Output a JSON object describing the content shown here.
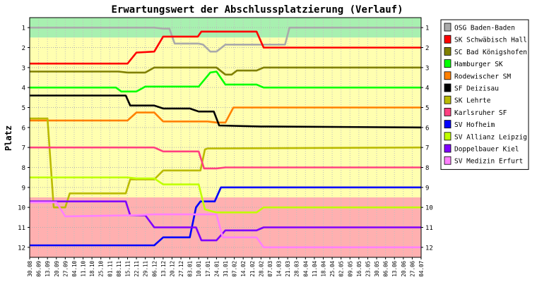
{
  "chart_data": {
    "type": "line",
    "title": "Erwartungswert der Abschlussplatzierung (Verlauf)",
    "ylabel": "Platz",
    "xlabel": "",
    "ylim": [
      0.5,
      12.5
    ],
    "y_inverted": true,
    "y_ticks": [
      "1",
      "2",
      "3",
      "4",
      "5",
      "6",
      "7",
      "8",
      "9",
      "10",
      "11",
      "12"
    ],
    "x_ticks": [
      "30.08",
      "06.09",
      "13.09",
      "20.09",
      "27.09",
      "04.10",
      "11.10",
      "18.10",
      "25.10",
      "01.11",
      "08.11",
      "15.11",
      "22.11",
      "29.11",
      "06.12",
      "13.12",
      "20.12",
      "27.12",
      "03.01",
      "10.01",
      "17.01",
      "24.01",
      "31.01",
      "07.02",
      "14.02",
      "21.02",
      "28.02",
      "07.03",
      "14.03",
      "21.03",
      "28.03",
      "04.04",
      "11.04",
      "18.04",
      "25.04",
      "02.05",
      "09.05",
      "16.05",
      "23.05",
      "30.05",
      "06.06",
      "13.06",
      "20.06",
      "27.06",
      "04.07"
    ],
    "bands": [
      {
        "from": 0.5,
        "to": 1.5,
        "color": "#a8f0b0"
      },
      {
        "from": 1.5,
        "to": 9.5,
        "color": "#ffffb0"
      },
      {
        "from": 9.5,
        "to": 12.5,
        "color": "#ffb0b0"
      }
    ],
    "grid": true,
    "legend_position": "right",
    "series": [
      {
        "name": "OSG Baden-Baden",
        "color": "#aaaaaa",
        "points": [
          [
            0,
            1
          ],
          [
            14,
            1
          ],
          [
            15,
            1.05
          ],
          [
            15.7,
            1.05
          ],
          [
            16.3,
            1.8
          ],
          [
            19,
            1.8
          ],
          [
            19.5,
            1.85
          ],
          [
            20.3,
            2.2
          ],
          [
            21,
            2.2
          ],
          [
            22,
            1.85
          ],
          [
            23,
            1.85
          ],
          [
            28.7,
            1.85
          ],
          [
            29.2,
            1
          ],
          [
            44,
            1
          ]
        ]
      },
      {
        "name": "SK Schwäbisch Hall",
        "color": "#ff0000",
        "points": [
          [
            0,
            2.8
          ],
          [
            11,
            2.8
          ],
          [
            12,
            2.25
          ],
          [
            14,
            2.2
          ],
          [
            15,
            1.45
          ],
          [
            18.9,
            1.45
          ],
          [
            19.3,
            1.2
          ],
          [
            23,
            1.2
          ],
          [
            25.5,
            1.2
          ],
          [
            26.3,
            2
          ],
          [
            44,
            2
          ]
        ]
      },
      {
        "name": "SC Bad Königshofen",
        "color": "#808000",
        "points": [
          [
            0,
            3.2
          ],
          [
            10,
            3.2
          ],
          [
            11,
            3.25
          ],
          [
            13,
            3.25
          ],
          [
            14,
            3
          ],
          [
            21,
            3
          ],
          [
            22,
            3.35
          ],
          [
            22.7,
            3.35
          ],
          [
            23.3,
            3.15
          ],
          [
            25.5,
            3.15
          ],
          [
            26.3,
            3
          ],
          [
            44,
            3
          ]
        ]
      },
      {
        "name": "Hamburger SK",
        "color": "#00ff00",
        "points": [
          [
            0,
            4
          ],
          [
            9.7,
            4
          ],
          [
            10.3,
            4.2
          ],
          [
            12,
            4.2
          ],
          [
            13,
            3.95
          ],
          [
            19,
            3.95
          ],
          [
            20.3,
            3.25
          ],
          [
            21,
            3.2
          ],
          [
            22,
            3.85
          ],
          [
            25.5,
            3.85
          ],
          [
            26.3,
            4
          ],
          [
            44,
            4
          ]
        ]
      },
      {
        "name": "Rodewischer SM",
        "color": "#ff8000",
        "points": [
          [
            0,
            5.65
          ],
          [
            11,
            5.65
          ],
          [
            12,
            5.25
          ],
          [
            14,
            5.25
          ],
          [
            15,
            5.7
          ],
          [
            20,
            5.7
          ],
          [
            21,
            5.75
          ],
          [
            22,
            5.75
          ],
          [
            22.9,
            5
          ],
          [
            44,
            5
          ]
        ]
      },
      {
        "name": "SF Deizisau",
        "color": "#000000",
        "points": [
          [
            0,
            4.4
          ],
          [
            10.8,
            4.4
          ],
          [
            11.3,
            4.9
          ],
          [
            14,
            4.9
          ],
          [
            15,
            5.05
          ],
          [
            18,
            5.05
          ],
          [
            19,
            5.2
          ],
          [
            20.7,
            5.2
          ],
          [
            21.3,
            5.9
          ],
          [
            26,
            5.95
          ],
          [
            44,
            6
          ]
        ]
      },
      {
        "name": "SK Lehrte",
        "color": "#bbbb00",
        "points": [
          [
            0,
            5.55
          ],
          [
            2,
            5.55
          ],
          [
            2.7,
            10
          ],
          [
            4,
            10
          ],
          [
            4.5,
            9.3
          ],
          [
            10.8,
            9.3
          ],
          [
            11.3,
            8.6
          ],
          [
            14,
            8.6
          ],
          [
            15,
            8.15
          ],
          [
            19.2,
            8.15
          ],
          [
            19.7,
            7.1
          ],
          [
            20,
            7.05
          ],
          [
            44,
            7
          ]
        ]
      },
      {
        "name": "Karlsruher SF",
        "color": "#ff4080",
        "points": [
          [
            0,
            7
          ],
          [
            14,
            7
          ],
          [
            15,
            7.2
          ],
          [
            19,
            7.2
          ],
          [
            19.6,
            8.05
          ],
          [
            21,
            8.05
          ],
          [
            22,
            8
          ],
          [
            44,
            8
          ]
        ]
      },
      {
        "name": "SV Hofheim",
        "color": "#0000ff",
        "points": [
          [
            0,
            11.9
          ],
          [
            14,
            11.9
          ],
          [
            15,
            11.5
          ],
          [
            18,
            11.5
          ],
          [
            18.7,
            10
          ],
          [
            19.2,
            9.7
          ],
          [
            20.8,
            9.7
          ],
          [
            21.5,
            9
          ],
          [
            22,
            9
          ],
          [
            44,
            9
          ]
        ]
      },
      {
        "name": "SV Allianz Leipzig",
        "color": "#c0ff00",
        "points": [
          [
            0,
            8.5
          ],
          [
            11,
            8.5
          ],
          [
            12,
            8.55
          ],
          [
            14,
            8.55
          ],
          [
            15,
            8.85
          ],
          [
            19,
            8.85
          ],
          [
            19.7,
            10.1
          ],
          [
            20.5,
            10.2
          ],
          [
            21,
            10.25
          ],
          [
            25.5,
            10.25
          ],
          [
            26.3,
            10
          ],
          [
            44,
            10
          ]
        ]
      },
      {
        "name": "Doppelbauer Kiel",
        "color": "#8000ff",
        "points": [
          [
            0,
            9.7
          ],
          [
            10.8,
            9.7
          ],
          [
            11.3,
            10.4
          ],
          [
            13,
            10.4
          ],
          [
            14,
            11
          ],
          [
            18.7,
            11
          ],
          [
            19.3,
            11.65
          ],
          [
            21,
            11.65
          ],
          [
            22,
            11.15
          ],
          [
            25.5,
            11.15
          ],
          [
            26.3,
            11
          ],
          [
            44,
            11
          ]
        ]
      },
      {
        "name": "SV Medizin Erfurt",
        "color": "#ff80ff",
        "points": [
          [
            0,
            9.75
          ],
          [
            3,
            9.75
          ],
          [
            4,
            10.45
          ],
          [
            11,
            10.4
          ],
          [
            14,
            10.35
          ],
          [
            21,
            10.35
          ],
          [
            21.7,
            11.5
          ],
          [
            25.5,
            11.5
          ],
          [
            26.3,
            12
          ],
          [
            44,
            12
          ]
        ]
      }
    ]
  }
}
